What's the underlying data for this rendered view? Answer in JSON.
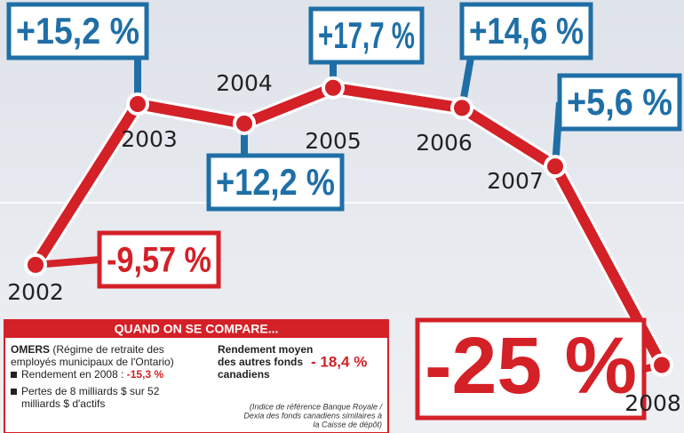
{
  "chart_data": {
    "type": "line",
    "categories": [
      "2002",
      "2003",
      "2004",
      "2005",
      "2006",
      "2007",
      "2008"
    ],
    "values": [
      -9.57,
      15.2,
      12.2,
      17.7,
      14.6,
      5.6,
      -25
    ],
    "value_labels": [
      "-9,57 %",
      "+15,2 %",
      "+12,2 %",
      "+17,7 %",
      "+14,6 %",
      "+5,6 %",
      "-25 %"
    ],
    "color": "#d42027",
    "inset": {
      "title": "QUAND ON SE COMPARE...",
      "omers_name": "OMERS",
      "omers_desc_1": "(Régime de retraite des",
      "omers_desc_2": "employés municipaux de l'Ontario)",
      "bullet_1": "Rendement en 2008 :",
      "bullet_1_value": "-15,3 %",
      "bullet_2_line_1": "Pertes de 8 milliards $ sur 52",
      "bullet_2_line_2": "milliards $ d'actifs",
      "others_1": "Rendement moyen",
      "others_2": "des autres fonds",
      "others_3": "canadiens",
      "others_value": "- 18,4 %",
      "source_1": "(Indice de référence Banque Royale /",
      "source_2": "Dexia des fonds canadiens similaires à",
      "source_3": "la Caisse de dépôt)"
    }
  }
}
